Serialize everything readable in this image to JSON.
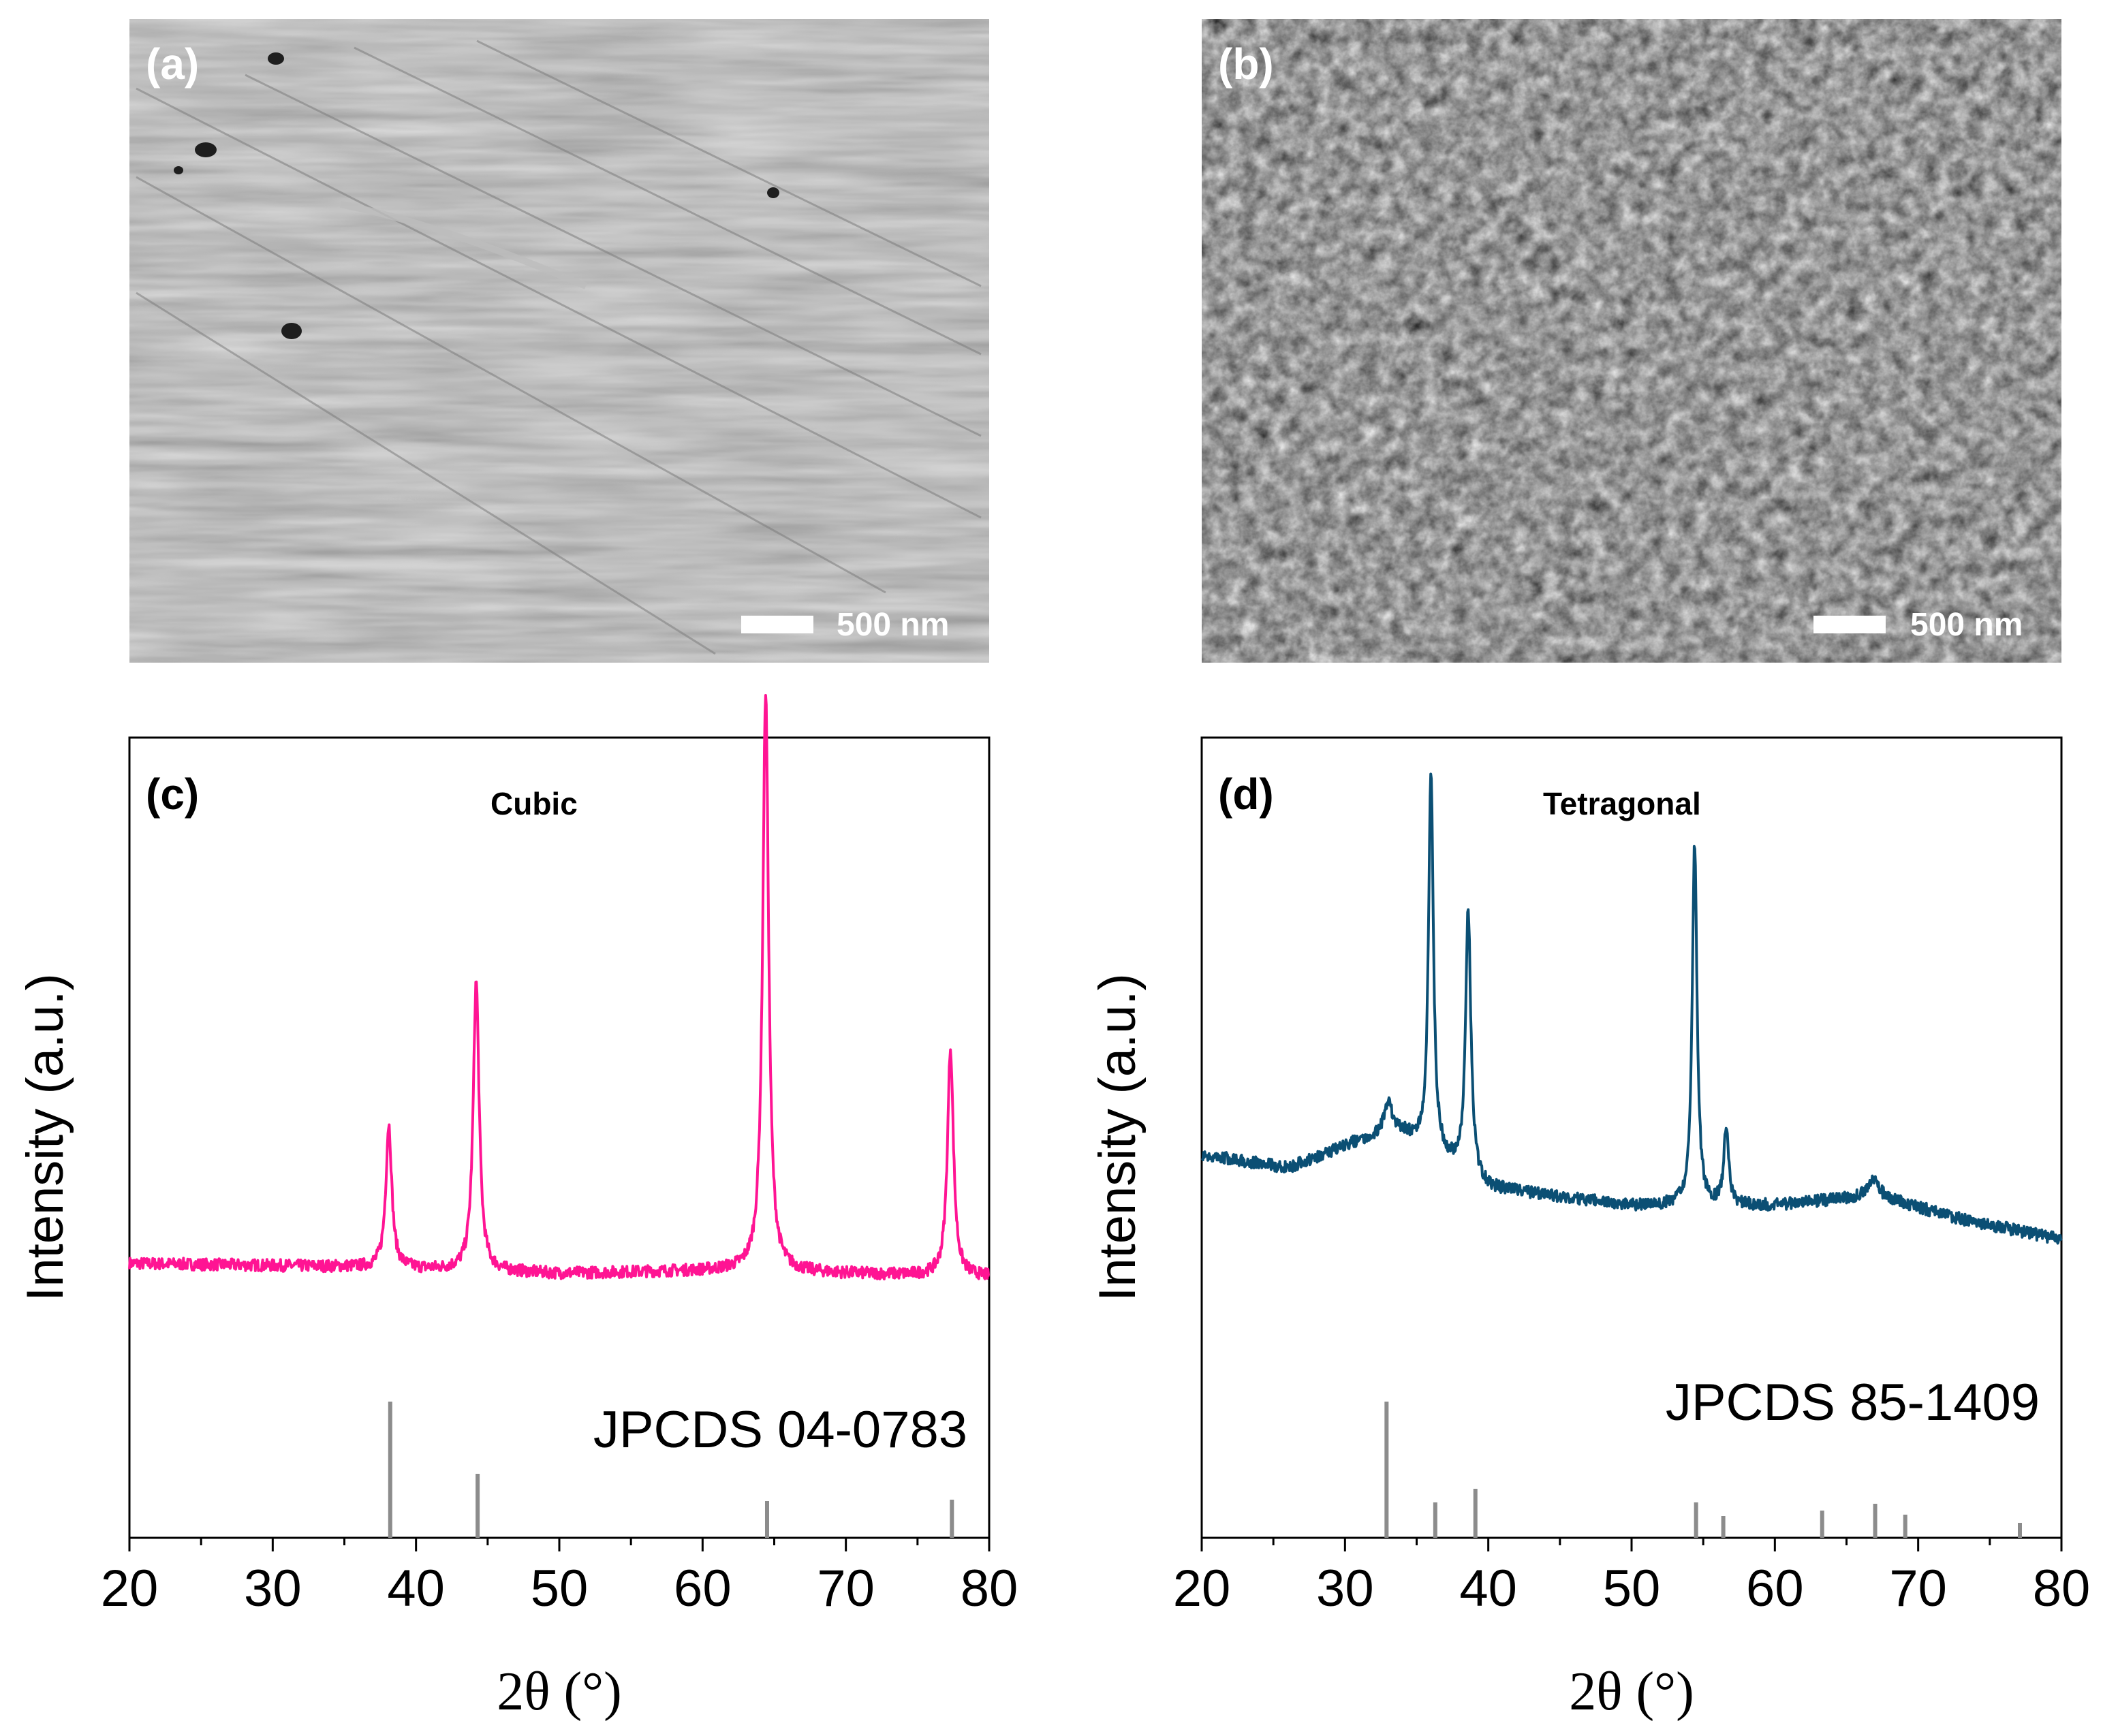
{
  "panels": {
    "a": {
      "label": "(a)",
      "scalebar": "500 nm"
    },
    "b": {
      "label": "(b)",
      "scalebar": "500 nm"
    }
  },
  "chart_data": [
    {
      "id": "c",
      "type": "line",
      "panel_label": "(c)",
      "title": "Cubic",
      "xlabel": "2θ (°)",
      "ylabel": "Intensity (a.u.)",
      "xlim": [
        20,
        80
      ],
      "xticks": [
        20,
        30,
        40,
        50,
        60,
        70,
        80
      ],
      "line_color": "#ff1493",
      "baseline": {
        "x": [
          20,
          35,
          50,
          62,
          70,
          80
        ],
        "y": [
          0.2,
          0.19,
          0.17,
          0.18,
          0.17,
          0.16
        ]
      },
      "peaks": [
        {
          "x": 38.1,
          "height": 0.42,
          "width": 0.25
        },
        {
          "x": 44.2,
          "height": 0.85,
          "width": 0.25
        },
        {
          "x": 64.4,
          "height": 1.7,
          "width": 0.25
        },
        {
          "x": 77.3,
          "height": 0.67,
          "width": 0.25
        }
      ],
      "reference": {
        "label": "JPCDS 04-0783",
        "lines": [
          {
            "x": 38.2,
            "intensity": 100
          },
          {
            "x": 44.3,
            "intensity": 47
          },
          {
            "x": 64.5,
            "intensity": 27
          },
          {
            "x": 77.4,
            "intensity": 28
          }
        ]
      }
    },
    {
      "id": "d",
      "type": "line",
      "panel_label": "(d)",
      "title": "Tetragonal",
      "xlabel": "2θ (°)",
      "ylabel": "Intensity (a.u.)",
      "xlim": [
        20,
        80
      ],
      "xticks": [
        20,
        30,
        40,
        50,
        60,
        70,
        80
      ],
      "line_color": "#0b4f74",
      "baseline": {
        "x": [
          20,
          26,
          31,
          34,
          40,
          50,
          60,
          67,
          73,
          80
        ],
        "y": [
          0.52,
          0.48,
          0.56,
          0.58,
          0.42,
          0.37,
          0.37,
          0.4,
          0.33,
          0.27
        ]
      },
      "peaks": [
        {
          "x": 33.0,
          "height": 0.1,
          "width": 0.35
        },
        {
          "x": 36.0,
          "height": 1.12,
          "width": 0.2
        },
        {
          "x": 38.6,
          "height": 0.78,
          "width": 0.22
        },
        {
          "x": 54.4,
          "height": 1.06,
          "width": 0.2
        },
        {
          "x": 56.6,
          "height": 0.22,
          "width": 0.2
        },
        {
          "x": 66.9,
          "height": 0.05,
          "width": 0.4
        }
      ],
      "reference": {
        "label": "JPCDS 85-1409",
        "lines": [
          {
            "x": 32.9,
            "intensity": 100
          },
          {
            "x": 36.3,
            "intensity": 26
          },
          {
            "x": 39.1,
            "intensity": 36
          },
          {
            "x": 54.5,
            "intensity": 26
          },
          {
            "x": 56.4,
            "intensity": 16
          },
          {
            "x": 63.3,
            "intensity": 20
          },
          {
            "x": 67.0,
            "intensity": 25
          },
          {
            "x": 69.1,
            "intensity": 17
          },
          {
            "x": 77.1,
            "intensity": 11
          }
        ]
      }
    }
  ]
}
